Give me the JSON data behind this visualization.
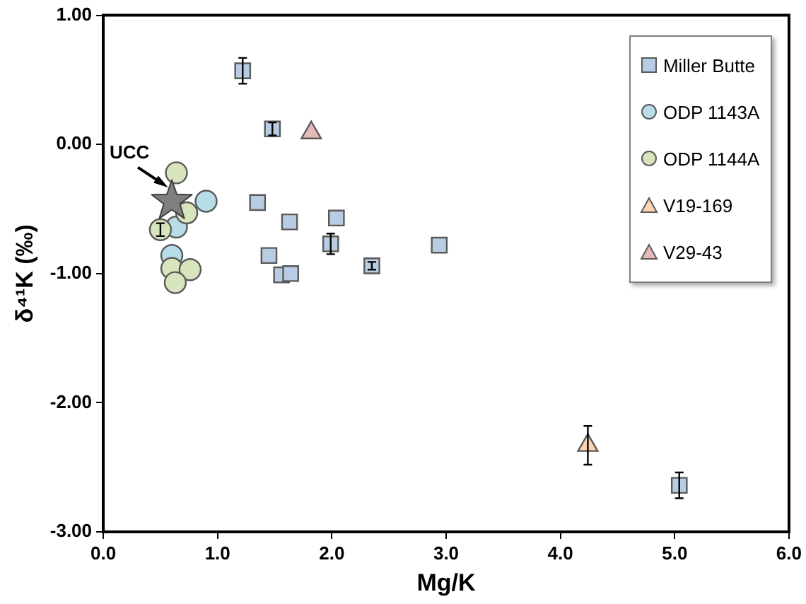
{
  "chart_data": {
    "type": "scatter",
    "xlabel": "Mg/K",
    "ylabel": "δ⁴¹K (‰)",
    "xlim": [
      0,
      6
    ],
    "xticks": [
      {
        "value": 0,
        "label": "0.0"
      },
      {
        "value": 1,
        "label": "1.0"
      },
      {
        "value": 2,
        "label": "2.0"
      },
      {
        "value": 3,
        "label": "3.0"
      },
      {
        "value": 4,
        "label": "4.0"
      },
      {
        "value": 5,
        "label": "5.0"
      },
      {
        "value": 6,
        "label": "6.0"
      }
    ],
    "ylim": [
      -3,
      1
    ],
    "yticks": [
      {
        "value": -3,
        "label": "-3.00"
      },
      {
        "value": -2,
        "label": "-2.00"
      },
      {
        "value": -1,
        "label": "-1.00"
      },
      {
        "value": 0,
        "label": "0.00"
      },
      {
        "value": 1,
        "label": "1.00"
      }
    ],
    "grid": false,
    "legend": "top right",
    "series": [
      {
        "name": "Miller Butte",
        "color": "#b8cce4",
        "marker": "square",
        "x": [
          1.22,
          1.48,
          1.35,
          1.63,
          2.04,
          1.99,
          2.94,
          1.45,
          2.35,
          1.56,
          1.64,
          5.04
        ],
        "values": [
          0.57,
          0.12,
          -0.45,
          -0.6,
          -0.57,
          -0.77,
          -0.78,
          -0.86,
          -0.94,
          -1.01,
          -1.0,
          -2.64
        ],
        "errors": [
          0.1,
          0.05,
          null,
          null,
          null,
          0.08,
          null,
          null,
          0.03,
          null,
          null,
          0.1
        ]
      },
      {
        "name": "ODP 1143A",
        "color": "#b7dee8",
        "marker": "circle",
        "x": [
          0.9,
          0.64,
          0.6
        ],
        "values": [
          -0.44,
          -0.64,
          -0.86
        ]
      },
      {
        "name": "ODP 1144A",
        "color": "#d7e4bc",
        "marker": "circle",
        "x": [
          0.64,
          0.5,
          0.73,
          0.6,
          0.76,
          0.63
        ],
        "values": [
          -0.22,
          -0.66,
          -0.53,
          -0.96,
          -0.97,
          -1.07
        ],
        "errors": [
          null,
          0.05,
          null,
          null,
          null,
          null
        ]
      },
      {
        "name": "V19-169",
        "color": "#fcd5b5",
        "marker": "triangle",
        "x": [
          4.24
        ],
        "values": [
          -2.33
        ],
        "errors": [
          0.15
        ]
      },
      {
        "name": "V29-43",
        "color": "#e6b9b8",
        "marker": "triangle",
        "x": [
          1.82
        ],
        "values": [
          0.09
        ]
      },
      {
        "color": "#7f7f7f",
        "marker": "star",
        "x": [
          0.6
        ],
        "values": [
          -0.44
        ]
      }
    ],
    "annotations": [
      {
        "text": "UCC",
        "x": 0.6,
        "y": -0.44
      }
    ]
  }
}
